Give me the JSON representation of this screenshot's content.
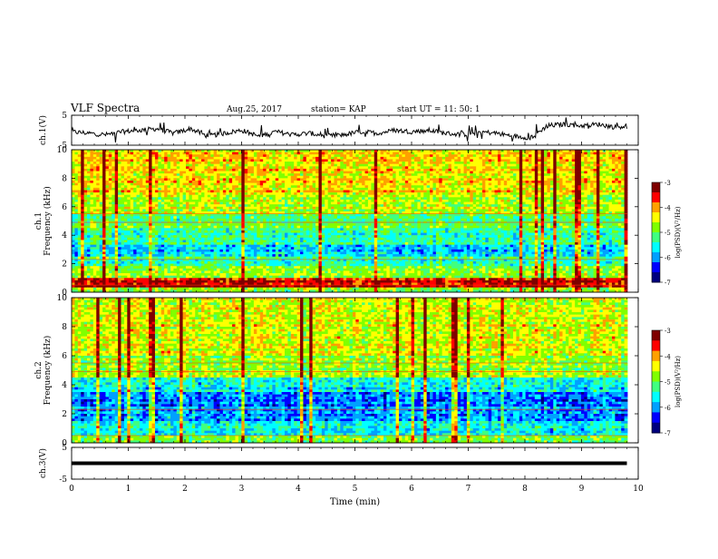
{
  "header": {
    "title": "VLF Spectra",
    "date": "Aug.25, 2017",
    "station": "station= KAP",
    "start": "start  UT =   11: 50: 1"
  },
  "colors": {
    "spectrogram_scale": [
      "#00007f",
      "#0000ff",
      "#00a0ff",
      "#00ffff",
      "#40ff80",
      "#80ff00",
      "#ffff00",
      "#ffa000",
      "#ff0000",
      "#7f0000"
    ],
    "line": "#000000"
  },
  "chart_data": [
    {
      "type": "line",
      "id": "ch1-waveform",
      "ylabel": "ch.1(V)",
      "ylim": [
        -5,
        5
      ],
      "yticks": [
        "5",
        "-5"
      ],
      "xlim": [
        0,
        10
      ],
      "x": [
        0.0,
        0.3,
        0.6,
        0.9,
        1.2,
        1.5,
        1.8,
        2.1,
        2.4,
        2.7,
        3.0,
        3.3,
        3.6,
        3.9,
        4.2,
        4.5,
        4.8,
        5.1,
        5.4,
        5.7,
        6.0,
        6.3,
        6.6,
        6.9,
        7.2,
        7.5,
        7.8,
        8.1,
        8.4,
        8.7,
        9.0,
        9.3,
        9.6,
        9.8
      ],
      "y": [
        -0.5,
        -1.0,
        -1.5,
        -0.5,
        0.0,
        0.5,
        -1.0,
        0.5,
        -2.0,
        -1.0,
        0.0,
        -2.0,
        -0.5,
        -1.5,
        -1.0,
        -2.0,
        -1.5,
        -0.5,
        -1.0,
        0.0,
        -0.5,
        0.0,
        -1.0,
        -1.5,
        -0.5,
        -1.0,
        -2.0,
        -2.5,
        1.5,
        2.0,
        1.5,
        2.0,
        1.0,
        1.5
      ]
    },
    {
      "type": "heatmap",
      "id": "ch1-spectrogram",
      "ylabel": "ch.1\nFrequency  (kHz)",
      "yticks": [
        "0",
        "2",
        "4",
        "6",
        "8",
        "10"
      ],
      "ylim": [
        0,
        10
      ],
      "xlim": [
        0,
        10
      ],
      "colorbar": {
        "label": "log(PSD)(V²/Hz)",
        "ticks": [
          "-3",
          "-4",
          "-5",
          "-6",
          "-7"
        ],
        "range": [
          -7,
          -3
        ]
      },
      "bands": [
        {
          "from": 0.0,
          "to": 0.4,
          "level": 0.55
        },
        {
          "from": 0.4,
          "to": 1.0,
          "level": 0.88
        },
        {
          "from": 1.0,
          "to": 1.8,
          "level": 0.55
        },
        {
          "from": 1.8,
          "to": 2.5,
          "level": 0.42
        },
        {
          "from": 2.5,
          "to": 3.3,
          "level": 0.28
        },
        {
          "from": 3.3,
          "to": 4.5,
          "level": 0.4
        },
        {
          "from": 4.5,
          "to": 5.5,
          "level": 0.48
        },
        {
          "from": 5.5,
          "to": 7.0,
          "level": 0.6
        },
        {
          "from": 7.0,
          "to": 10.0,
          "level": 0.68
        }
      ]
    },
    {
      "type": "heatmap",
      "id": "ch2-spectrogram",
      "ylabel": "ch.2\nFrequency  (kHz)",
      "yticks": [
        "0",
        "2",
        "4",
        "6",
        "8",
        "10"
      ],
      "ylim": [
        0,
        10
      ],
      "xlim": [
        0,
        10
      ],
      "colorbar": {
        "label": "log(PSD)(V²/Hz)",
        "ticks": [
          "-3",
          "-4",
          "-5",
          "-6",
          "-7"
        ],
        "range": [
          -7,
          -3
        ]
      },
      "bands": [
        {
          "from": 0.0,
          "to": 0.5,
          "level": 0.5
        },
        {
          "from": 0.5,
          "to": 1.5,
          "level": 0.35
        },
        {
          "from": 1.5,
          "to": 2.5,
          "level": 0.25
        },
        {
          "from": 2.5,
          "to": 3.5,
          "level": 0.2
        },
        {
          "from": 3.5,
          "to": 4.5,
          "level": 0.35
        },
        {
          "from": 4.5,
          "to": 6.0,
          "level": 0.55
        },
        {
          "from": 6.0,
          "to": 10.0,
          "level": 0.62
        }
      ]
    },
    {
      "type": "line",
      "id": "ch3-waveform",
      "ylabel": "ch.3(V)",
      "ylim": [
        -5,
        5
      ],
      "yticks": [
        "5",
        "-5"
      ],
      "xlim": [
        0,
        10
      ],
      "xlabel": "Time  (min)",
      "xticks": [
        "0",
        "1",
        "2",
        "3",
        "4",
        "5",
        "6",
        "7",
        "8",
        "9",
        "10"
      ],
      "x": [
        0.0,
        9.8
      ],
      "y": [
        0.0,
        0.0
      ]
    }
  ]
}
